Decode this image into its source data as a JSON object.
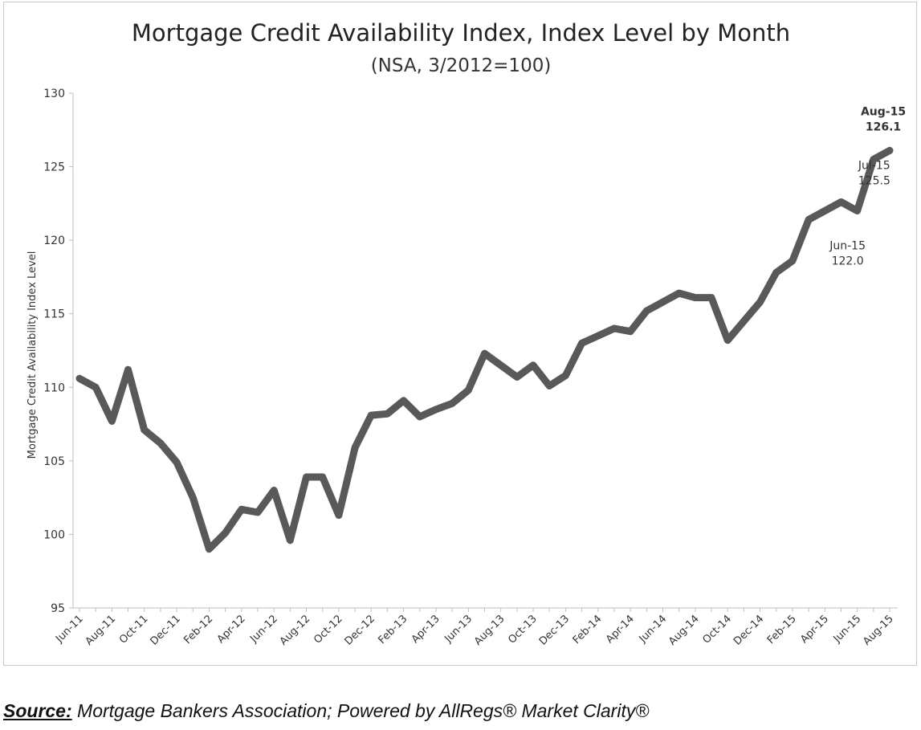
{
  "chart_data": {
    "type": "line",
    "title": "Mortgage Credit Availability Index, Index Level by Month",
    "subtitle": "(NSA, 3/2012=100)",
    "xlabel": "",
    "ylabel": "Mortgage Credit Availability Index Level",
    "ylim": [
      95,
      130
    ],
    "yticks": [
      95,
      100,
      105,
      110,
      115,
      120,
      125,
      130
    ],
    "grid": false,
    "legend": "none",
    "line_color": "#595959",
    "x": [
      "Jun-11",
      "Jul-11",
      "Aug-11",
      "Sep-11",
      "Oct-11",
      "Nov-11",
      "Dec-11",
      "Jan-12",
      "Feb-12",
      "Mar-12",
      "Apr-12",
      "May-12",
      "Jun-12",
      "Jul-12",
      "Aug-12",
      "Sep-12",
      "Oct-12",
      "Nov-12",
      "Dec-12",
      "Jan-13",
      "Feb-13",
      "Mar-13",
      "Apr-13",
      "May-13",
      "Jun-13",
      "Jul-13",
      "Aug-13",
      "Sep-13",
      "Oct-13",
      "Nov-13",
      "Dec-13",
      "Jan-14",
      "Feb-14",
      "Mar-14",
      "Apr-14",
      "May-14",
      "Jun-14",
      "Jul-14",
      "Aug-14",
      "Sep-14",
      "Oct-14",
      "Nov-14",
      "Dec-14",
      "Jan-15",
      "Feb-15",
      "Mar-15",
      "Apr-15",
      "May-15",
      "Jun-15",
      "Jul-15",
      "Aug-15"
    ],
    "tick_labels": [
      "Jun-11",
      "Aug-11",
      "Oct-11",
      "Dec-11",
      "Feb-12",
      "Apr-12",
      "Jun-12",
      "Aug-12",
      "Oct-12",
      "Dec-12",
      "Feb-13",
      "Apr-13",
      "Jun-13",
      "Aug-13",
      "Oct-13",
      "Dec-13",
      "Feb-14",
      "Apr-14",
      "Jun-14",
      "Aug-14",
      "Oct-14",
      "Dec-14",
      "Feb-15",
      "Apr-15",
      "Jun-15",
      "Aug-15"
    ],
    "series": [
      {
        "values": [
          110.6,
          110.0,
          107.7,
          111.2,
          107.1,
          106.2,
          104.9,
          102.5,
          99.0,
          100.1,
          101.7,
          101.5,
          103.0,
          99.6,
          103.9,
          103.9,
          101.3,
          105.9,
          108.1,
          108.2,
          109.1,
          108.0,
          108.5,
          108.9,
          109.8,
          112.3,
          111.5,
          110.7,
          111.5,
          110.1,
          110.8,
          113.0,
          113.5,
          114.0,
          113.8,
          115.2,
          115.8,
          116.4,
          116.1,
          116.1,
          113.2,
          114.5,
          115.8,
          117.8,
          118.6,
          121.4,
          122.0,
          122.6,
          122.0,
          125.5,
          126.1
        ]
      }
    ],
    "annotations": [
      {
        "index": 50,
        "line1": "Aug-15",
        "line2": "126.1",
        "bold": true
      },
      {
        "index": 49,
        "line1": "Jul-15",
        "line2": "125.5",
        "bold": false
      },
      {
        "index": 48,
        "line1": "Jun-15",
        "line2": "122.0",
        "bold": false
      }
    ]
  },
  "source": {
    "label": "Source:",
    "text": " Mortgage Bankers Association; Powered by AllRegs® Market Clarity®"
  }
}
